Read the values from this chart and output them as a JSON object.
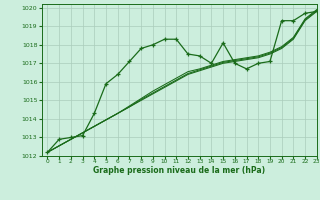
{
  "title": "Graphe pression niveau de la mer (hPa)",
  "bg_color": "#cceedd",
  "grid_color": "#aaccbb",
  "line_color": "#1a6b1a",
  "xlim": [
    -0.5,
    23
  ],
  "ylim": [
    1012,
    1020.2
  ],
  "xticks": [
    0,
    1,
    2,
    3,
    4,
    5,
    6,
    7,
    8,
    9,
    10,
    11,
    12,
    13,
    14,
    15,
    16,
    17,
    18,
    19,
    20,
    21,
    22,
    23
  ],
  "yticks": [
    1012,
    1013,
    1014,
    1015,
    1016,
    1017,
    1018,
    1019,
    1020
  ],
  "series_main": [
    1012.2,
    1012.9,
    1013.0,
    1013.1,
    1014.3,
    1015.9,
    1016.4,
    1017.1,
    1017.8,
    1018.0,
    1018.3,
    1018.3,
    1017.5,
    1017.4,
    1017.0,
    1018.1,
    1017.0,
    1016.7,
    1017.0,
    1017.1,
    1019.3,
    1019.3,
    1019.7,
    1019.8
  ],
  "series_trends": [
    [
      1012.2,
      1012.55,
      1012.9,
      1013.25,
      1013.6,
      1013.95,
      1014.3,
      1014.65,
      1015.0,
      1015.35,
      1015.7,
      1016.05,
      1016.4,
      1016.6,
      1016.8,
      1017.0,
      1017.1,
      1017.2,
      1017.3,
      1017.5,
      1017.8,
      1018.3,
      1019.3,
      1019.8
    ],
    [
      1012.2,
      1012.55,
      1012.9,
      1013.25,
      1013.6,
      1013.95,
      1014.3,
      1014.65,
      1015.05,
      1015.4,
      1015.75,
      1016.1,
      1016.45,
      1016.65,
      1016.85,
      1017.05,
      1017.15,
      1017.25,
      1017.35,
      1017.55,
      1017.85,
      1018.35,
      1019.35,
      1019.85
    ],
    [
      1012.2,
      1012.55,
      1012.9,
      1013.25,
      1013.6,
      1013.95,
      1014.3,
      1014.7,
      1015.1,
      1015.5,
      1015.85,
      1016.2,
      1016.55,
      1016.7,
      1016.9,
      1017.1,
      1017.2,
      1017.3,
      1017.4,
      1017.6,
      1017.9,
      1018.4,
      1019.4,
      1019.9
    ]
  ]
}
